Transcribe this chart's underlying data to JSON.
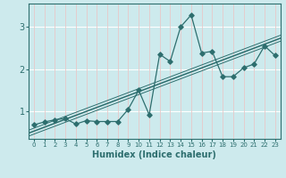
{
  "x_data": [
    0,
    1,
    2,
    3,
    4,
    5,
    6,
    7,
    8,
    9,
    10,
    11,
    12,
    13,
    14,
    15,
    16,
    17,
    18,
    19,
    20,
    21,
    22,
    23
  ],
  "y_scatter": [
    0.68,
    0.75,
    0.8,
    0.83,
    0.7,
    0.78,
    0.76,
    0.76,
    0.76,
    1.05,
    1.5,
    0.92,
    2.35,
    2.18,
    3.0,
    3.28,
    2.38,
    2.42,
    1.82,
    1.82,
    2.03,
    2.12,
    2.55,
    2.32
  ],
  "line_color": "#2d6e6e",
  "scatter_color": "#2d6e6e",
  "bg_color": "#cdeaed",
  "grid_color_v": "#e8c8c8",
  "grid_color_h": "#ffffff",
  "xlabel": "Humidex (Indice chaleur)",
  "xlim": [
    -0.5,
    23.5
  ],
  "ylim": [
    0.35,
    3.55
  ],
  "yticks": [
    1,
    2,
    3
  ],
  "reg_offsets": [
    -0.07,
    0.0,
    0.07
  ],
  "reg_linewidths": [
    0.7,
    1.1,
    0.7
  ]
}
